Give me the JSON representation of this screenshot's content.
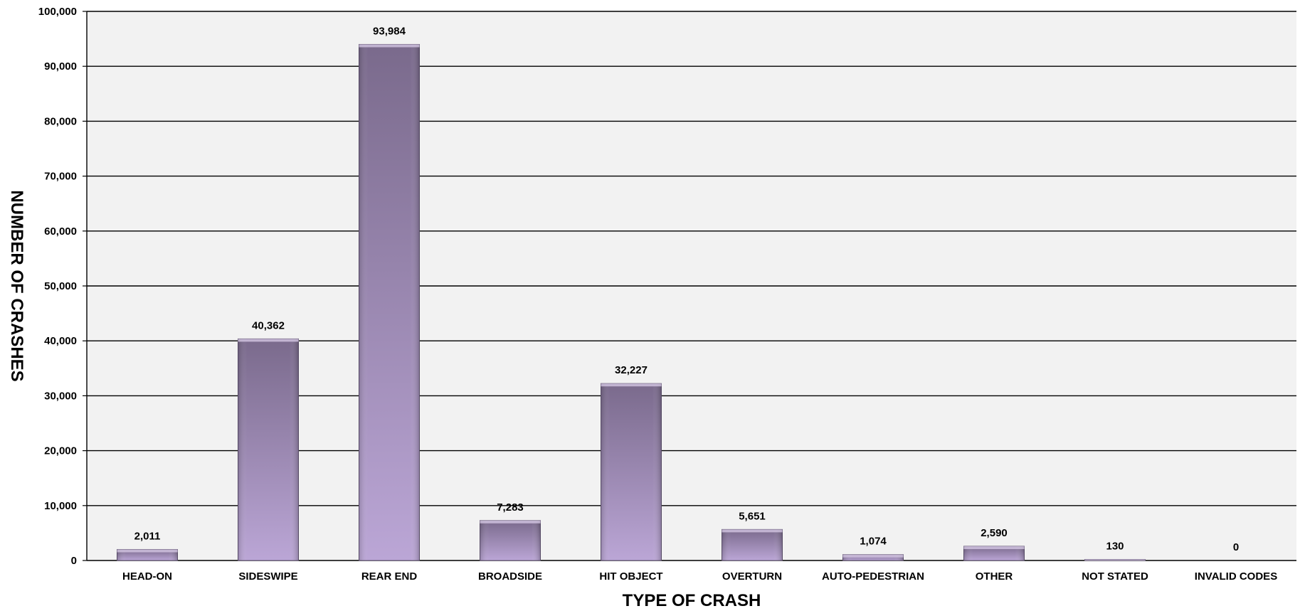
{
  "chart_data": {
    "type": "bar",
    "categories": [
      "HEAD-ON",
      "SIDESWIPE",
      "REAR END",
      "BROADSIDE",
      "HIT OBJECT",
      "OVERTURN",
      "AUTO-PEDESTRIAN",
      "OTHER",
      "NOT STATED",
      "INVALID CODES"
    ],
    "values": [
      2011,
      40362,
      93984,
      7283,
      32227,
      5651,
      1074,
      2590,
      130,
      0
    ],
    "data_labels": [
      "2,011",
      "40,362",
      "93,984",
      "7,283",
      "32,227",
      "5,651",
      "1,074",
      "2,590",
      "130",
      "0"
    ],
    "xlabel": "TYPE OF CRASH",
    "ylabel": "NUMBER OF CRASHES",
    "ylim": [
      0,
      100000
    ],
    "yticks": [
      0,
      10000,
      20000,
      30000,
      40000,
      50000,
      60000,
      70000,
      80000,
      90000,
      100000
    ],
    "ytick_labels": [
      "0",
      "10,000",
      "20,000",
      "30,000",
      "40,000",
      "50,000",
      "60,000",
      "70,000",
      "80,000",
      "90,000",
      "100,000"
    ],
    "grid": true,
    "legend": "none",
    "colors": {
      "plot_background": "#f2f2f2",
      "bar_top": "#7a6a8c",
      "bar_bottom": "#bba6d6",
      "bar_edge": "#5f5270",
      "gridline": "#000000"
    }
  }
}
